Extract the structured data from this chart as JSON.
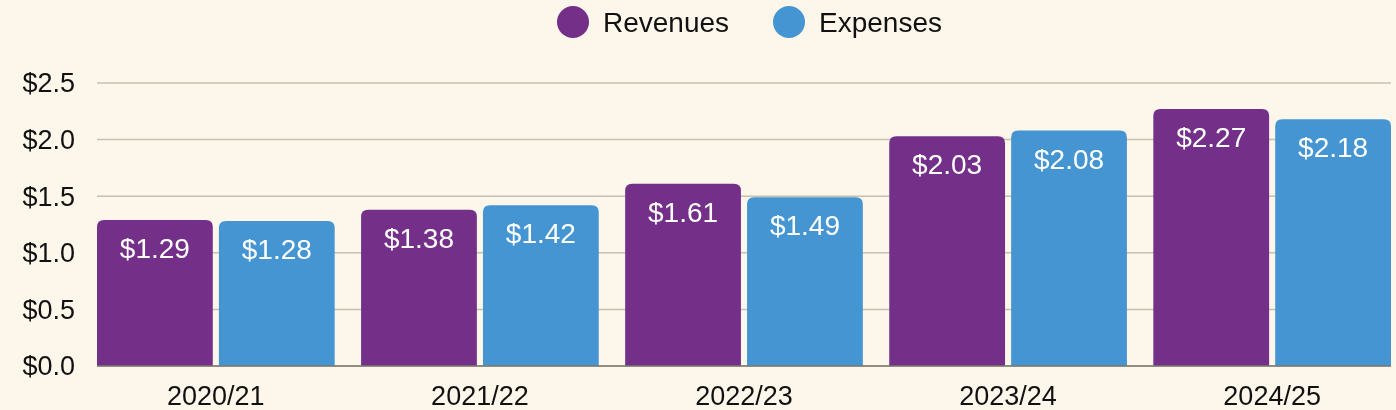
{
  "chart_data": {
    "type": "bar",
    "categories": [
      "2020/21",
      "2021/22",
      "2022/23",
      "2023/24",
      "2024/25"
    ],
    "series": [
      {
        "name": "Revenues",
        "color": "#743089",
        "values": [
          1.29,
          1.38,
          1.61,
          2.03,
          2.27
        ],
        "value_labels": [
          "$1.29",
          "$1.38",
          "$1.61",
          "$2.03",
          "$2.27"
        ]
      },
      {
        "name": "Expenses",
        "color": "#4495d1",
        "values": [
          1.28,
          1.42,
          1.49,
          2.08,
          2.18
        ],
        "value_labels": [
          "$1.28",
          "$1.42",
          "$1.49",
          "$2.08",
          "$2.18"
        ]
      }
    ],
    "ylim": [
      0,
      2.5
    ],
    "yticks": [
      {
        "value": 0,
        "label": "$0.0"
      },
      {
        "value": 0.5,
        "label": "$0.5"
      },
      {
        "value": 1,
        "label": "$1.0"
      },
      {
        "value": 1.5,
        "label": "$1.5"
      },
      {
        "value": 2,
        "label": "$2.0"
      },
      {
        "value": 2.5,
        "label": "$2.5"
      }
    ],
    "grid": "y",
    "legend": "top"
  }
}
